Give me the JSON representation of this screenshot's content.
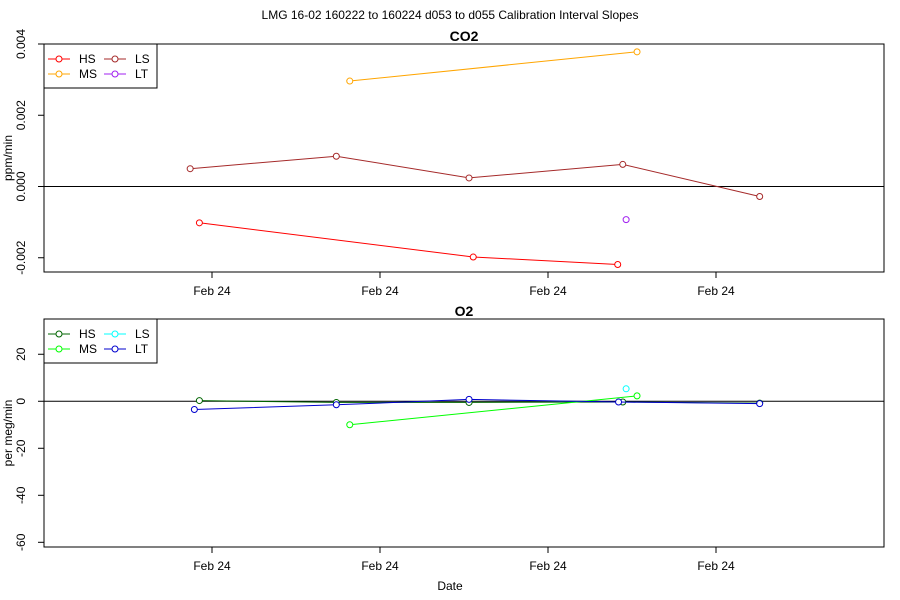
{
  "figure_title": "LMG   16-02    160222 to 160224    d053 to d055   Calibration Interval Slopes",
  "x_axis_title": "Date",
  "chart_data": [
    {
      "type": "line",
      "title": "CO2",
      "ylabel": "ppm/min",
      "xlabel": "",
      "ylim": [
        -0.0024,
        0.004
      ],
      "y_ticks": [
        -0.002,
        0,
        0.002,
        0.004
      ],
      "y_tick_labels": [
        "-0.002",
        "0.000",
        "0.002",
        "0.004"
      ],
      "x_domain": [
        0,
        1
      ],
      "x_ticks": [
        0.2,
        0.4,
        0.6,
        0.8
      ],
      "x_tick_labels": [
        "Feb 24",
        "Feb 24",
        "Feb 24",
        "Feb 24"
      ],
      "zero_line": true,
      "legend_position": "top-left",
      "legend": [
        "HS",
        "MS",
        "LS",
        "LT"
      ],
      "series": [
        {
          "name": "HS",
          "color": "#ff0000",
          "x": [
            0.185,
            0.511,
            0.683
          ],
          "y": [
            -0.00102,
            -0.00198,
            -0.00219
          ]
        },
        {
          "name": "MS",
          "color": "#ffa500",
          "x": [
            0.364,
            0.706
          ],
          "y": [
            0.00296,
            0.00378
          ]
        },
        {
          "name": "LS",
          "color": "#a52a2a",
          "x": [
            0.174,
            0.348,
            0.506,
            0.689,
            0.852
          ],
          "y": [
            0.0005,
            0.00085,
            0.00024,
            0.00062,
            -0.00028
          ]
        },
        {
          "name": "LT",
          "color": "#a020f0",
          "x": [
            0.693
          ],
          "y": [
            -0.00093
          ]
        }
      ]
    },
    {
      "type": "line",
      "title": "O2",
      "ylabel": "per meg/min",
      "xlabel": "Date",
      "ylim": [
        -62,
        35
      ],
      "y_ticks": [
        -60,
        -40,
        -20,
        0,
        20
      ],
      "y_tick_labels": [
        "-60",
        "-40",
        "-20",
        "0",
        "20"
      ],
      "x_domain": [
        0,
        1
      ],
      "x_ticks": [
        0.2,
        0.4,
        0.6,
        0.8
      ],
      "x_tick_labels": [
        "Feb 24",
        "Feb 24",
        "Feb 24",
        "Feb 24"
      ],
      "zero_line": true,
      "legend_position": "top-left",
      "legend": [
        "HS",
        "MS",
        "LS",
        "LT"
      ],
      "series": [
        {
          "name": "HS",
          "color": "#006400",
          "x": [
            0.185,
            0.348,
            0.506,
            0.689,
            0.852
          ],
          "y": [
            0.3,
            -0.5,
            -0.5,
            -0.3,
            -0.8
          ]
        },
        {
          "name": "MS",
          "color": "#00ff00",
          "x": [
            0.364,
            0.706
          ],
          "y": [
            -10,
            2.3
          ]
        },
        {
          "name": "LS",
          "color": "#00ffff",
          "x": [
            0.693
          ],
          "y": [
            5.3
          ]
        },
        {
          "name": "LT",
          "color": "#0000cd",
          "x": [
            0.179,
            0.348,
            0.506,
            0.684,
            0.852
          ],
          "y": [
            -3.5,
            -1.5,
            0.8,
            -0.3,
            -1.0
          ]
        }
      ]
    }
  ]
}
